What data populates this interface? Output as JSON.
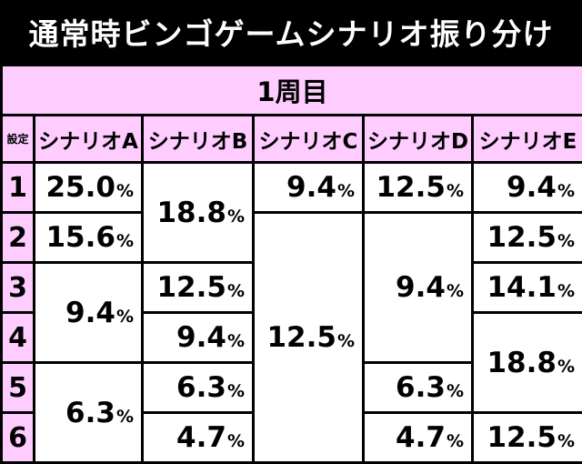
{
  "title": "通常時ビンゴゲームシナリオ振り分け",
  "round": "1周目",
  "setting_header": "設定",
  "scenarios": [
    "シナリオA",
    "シナリオB",
    "シナリオC",
    "シナリオD",
    "シナリオE"
  ],
  "settings": [
    "1",
    "2",
    "3",
    "4",
    "5",
    "6"
  ],
  "percent_sign": "%",
  "values": {
    "A": [
      "25.0",
      "15.6",
      "9.4",
      "6.3"
    ],
    "B": [
      "18.8",
      "12.5",
      "9.4",
      "6.3",
      "4.7"
    ],
    "C": [
      "9.4",
      "12.5"
    ],
    "D": [
      "12.5",
      "9.4",
      "6.3",
      "4.7"
    ],
    "E": [
      "9.4",
      "12.5",
      "14.1",
      "18.8",
      "12.5"
    ]
  }
}
